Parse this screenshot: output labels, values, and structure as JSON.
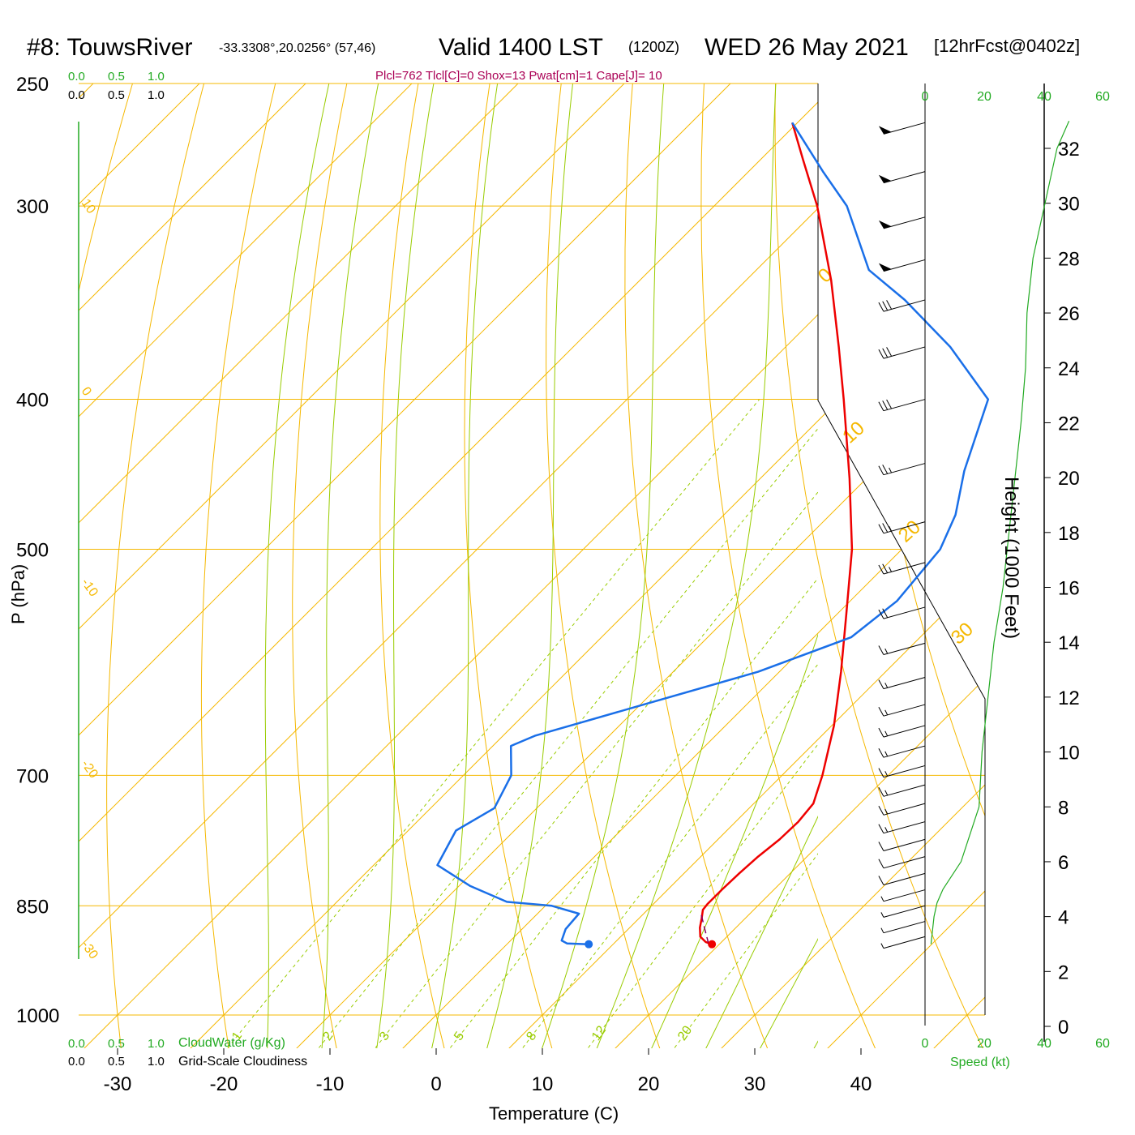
{
  "header": {
    "station": "#8: TouwsRiver",
    "coords": "-33.3308°,20.0256° (57,46)",
    "valid": "Valid 1400 LST",
    "utc": "(1200Z)",
    "date": "WED 26 May 2021",
    "forecast": "[12hrFcst@0402z]",
    "indices": "Plcl=762 Tlcl[C]=0 Shox=13 Pwat[cm]=1 Cape[J]= 10"
  },
  "colors": {
    "grid": "#f5b800",
    "adiabat": "#99cc00",
    "green": "#22aa22",
    "temp": "#ee0000",
    "dew": "#1a6fe8",
    "indices": "#aa0055",
    "parcel": "#880066"
  },
  "chart_data": {
    "type": "line",
    "xlabel": "Temperature (C)",
    "ylabel": "P (hPa)",
    "y2label": "Height (1000 Feet)",
    "x_ticks": [
      "-30",
      "-20",
      "-10",
      "0",
      "10",
      "20",
      "30",
      "40"
    ],
    "y_ticks": [
      "250",
      "300",
      "400",
      "500",
      "700",
      "850",
      "1000"
    ],
    "height_ticks": [
      "0",
      "2",
      "4",
      "6",
      "8",
      "10",
      "12",
      "14",
      "16",
      "18",
      "20",
      "22",
      "24",
      "26",
      "28",
      "30",
      "32"
    ],
    "skew_labels": [
      "10",
      "0",
      "-10",
      "-20",
      "-30"
    ],
    "skew_labels_right": [
      "0",
      "10",
      "20",
      "30"
    ],
    "mixing_ratio_labels": [
      "1",
      "2",
      "3",
      "5",
      "8",
      "12",
      "20"
    ],
    "cloud_top_ticks": [
      "0.0",
      "0.5",
      "1.0"
    ],
    "cloud_bottom_ticks": [
      "0.0",
      "0.5",
      "1.0"
    ],
    "cloudwater_label": "CloudWater (g/Kg)",
    "cloudiness_label": "Grid-Scale Cloudiness",
    "speed_ticks": [
      "0",
      "20",
      "40",
      "60"
    ],
    "speed_label": "Speed (kt)",
    "temperature": [
      {
        "p": 900,
        "t": 19.3
      },
      {
        "p": 897,
        "t": 18.5
      },
      {
        "p": 890,
        "t": 17.5
      },
      {
        "p": 878,
        "t": 16.6
      },
      {
        "p": 866,
        "t": 15.9
      },
      {
        "p": 855,
        "t": 15.2
      },
      {
        "p": 848,
        "t": 15.1
      },
      {
        "p": 830,
        "t": 15.1
      },
      {
        "p": 810,
        "t": 15.2
      },
      {
        "p": 790,
        "t": 15.4
      },
      {
        "p": 770,
        "t": 15.8
      },
      {
        "p": 750,
        "t": 15.9
      },
      {
        "p": 730,
        "t": 15.6
      },
      {
        "p": 700,
        "t": 13.8
      },
      {
        "p": 650,
        "t": 10.2
      },
      {
        "p": 600,
        "t": 5.8
      },
      {
        "p": 550,
        "t": 0.8
      },
      {
        "p": 500,
        "t": -4.7
      },
      {
        "p": 450,
        "t": -11.6
      },
      {
        "p": 400,
        "t": -19.6
      },
      {
        "p": 370,
        "t": -25.0
      },
      {
        "p": 335,
        "t": -32.0
      },
      {
        "p": 300,
        "t": -40.3
      },
      {
        "p": 280,
        "t": -46.0
      },
      {
        "p": 265,
        "t": -50.5
      }
    ],
    "dewpoint": [
      {
        "p": 900,
        "t": 7.7
      },
      {
        "p": 899,
        "t": 5.6
      },
      {
        "p": 895,
        "t": 4.8
      },
      {
        "p": 880,
        "t": 4.1
      },
      {
        "p": 860,
        "t": 3.9
      },
      {
        "p": 850,
        "t": 0.6
      },
      {
        "p": 845,
        "t": -4.0
      },
      {
        "p": 825,
        "t": -9.0
      },
      {
        "p": 800,
        "t": -14.0
      },
      {
        "p": 760,
        "t": -15.5
      },
      {
        "p": 735,
        "t": -14.0
      },
      {
        "p": 700,
        "t": -15.5
      },
      {
        "p": 670,
        "t": -18.3
      },
      {
        "p": 660,
        "t": -17.0
      },
      {
        "p": 630,
        "t": -9.7
      },
      {
        "p": 600,
        "t": -2.0
      },
      {
        "p": 570,
        "t": 3.5
      },
      {
        "p": 540,
        "t": 4.4
      },
      {
        "p": 500,
        "t": 3.6
      },
      {
        "p": 475,
        "t": 1.8
      },
      {
        "p": 445,
        "t": -1.5
      },
      {
        "p": 400,
        "t": -6.0
      },
      {
        "p": 370,
        "t": -14.5
      },
      {
        "p": 345,
        "t": -23.2
      },
      {
        "p": 330,
        "t": -29.4
      },
      {
        "p": 300,
        "t": -37.5
      },
      {
        "p": 285,
        "t": -43.0
      },
      {
        "p": 265,
        "t": -50.5
      }
    ],
    "surface_temp": {
      "p": 900,
      "t": 19.3
    },
    "surface_dewpoint": {
      "p": 900,
      "t": 7.7
    },
    "parcel": [
      {
        "p": 900,
        "t": 19.0
      },
      {
        "p": 880,
        "t": 17.2
      },
      {
        "p": 860,
        "t": 15.4
      }
    ],
    "height_profile": [
      {
        "kft": 3.0,
        "kt": 2
      },
      {
        "kft": 4.0,
        "kt": 3
      },
      {
        "kft": 4.5,
        "kt": 4
      },
      {
        "kft": 5.0,
        "kt": 6
      },
      {
        "kft": 6.0,
        "kt": 12
      },
      {
        "kft": 7.0,
        "kt": 15
      },
      {
        "kft": 8.0,
        "kt": 18
      },
      {
        "kft": 9.0,
        "kt": 18.5
      },
      {
        "kft": 10.0,
        "kt": 19
      },
      {
        "kft": 12.0,
        "kt": 21
      },
      {
        "kft": 14.0,
        "kt": 23
      },
      {
        "kft": 16.0,
        "kt": 26
      },
      {
        "kft": 18.0,
        "kt": 28
      },
      {
        "kft": 20.0,
        "kt": 30
      },
      {
        "kft": 22.0,
        "kt": 32
      },
      {
        "kft": 24.0,
        "kt": 33.5
      },
      {
        "kft": 26.0,
        "kt": 34
      },
      {
        "kft": 28.0,
        "kt": 36
      },
      {
        "kft": 30.0,
        "kt": 40
      },
      {
        "kft": 32.0,
        "kt": 44
      },
      {
        "kft": 33.0,
        "kt": 48
      }
    ],
    "wind_barbs": [
      {
        "p": 265,
        "kt": 45
      },
      {
        "p": 285,
        "kt": 45
      },
      {
        "p": 305,
        "kt": 45
      },
      {
        "p": 325,
        "kt": 45
      },
      {
        "p": 345,
        "kt": 30
      },
      {
        "p": 370,
        "kt": 30
      },
      {
        "p": 400,
        "kt": 30
      },
      {
        "p": 440,
        "kt": 25
      },
      {
        "p": 480,
        "kt": 25
      },
      {
        "p": 510,
        "kt": 25
      },
      {
        "p": 545,
        "kt": 20
      },
      {
        "p": 575,
        "kt": 15
      },
      {
        "p": 605,
        "kt": 15
      },
      {
        "p": 630,
        "kt": 15
      },
      {
        "p": 650,
        "kt": 15
      },
      {
        "p": 670,
        "kt": 15
      },
      {
        "p": 690,
        "kt": 15
      },
      {
        "p": 710,
        "kt": 15
      },
      {
        "p": 730,
        "kt": 15
      },
      {
        "p": 750,
        "kt": 15
      },
      {
        "p": 770,
        "kt": 10
      },
      {
        "p": 790,
        "kt": 10
      },
      {
        "p": 810,
        "kt": 10
      },
      {
        "p": 830,
        "kt": 5
      },
      {
        "p": 850,
        "kt": 5
      },
      {
        "p": 870,
        "kt": 5
      },
      {
        "p": 890,
        "kt": 5
      }
    ]
  }
}
